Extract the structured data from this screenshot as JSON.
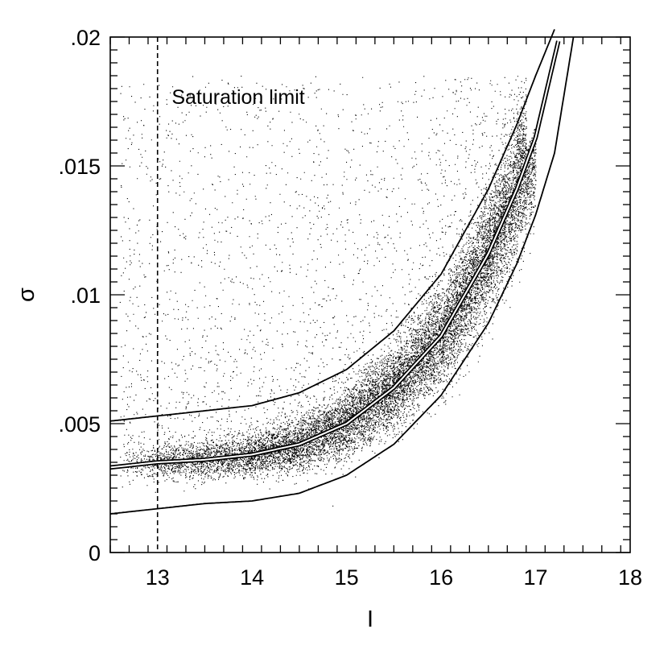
{
  "chart_data": {
    "type": "scatter",
    "title": "",
    "xlabel": "I",
    "ylabel": "σ",
    "xlim": [
      12.5,
      18
    ],
    "ylim": [
      0,
      0.02
    ],
    "x_ticks": [
      13,
      14,
      15,
      16,
      17,
      18
    ],
    "x_tick_labels": [
      "13",
      "14",
      "15",
      "16",
      "17",
      "18"
    ],
    "y_ticks": [
      0,
      0.005,
      0.01,
      0.015,
      0.02
    ],
    "y_tick_labels": [
      "0",
      ".005",
      ".01",
      ".015",
      ".02"
    ],
    "grid": false,
    "legend": "none",
    "annotations": [
      {
        "text": "Saturation limit",
        "x": 13.15,
        "y": 0.0174
      }
    ],
    "reference_lines": [
      {
        "orientation": "vertical",
        "x": 13,
        "style": "dashed"
      }
    ],
    "curves": [
      {
        "role": "upper",
        "x": [
          12.5,
          13,
          13.5,
          14,
          14.5,
          15,
          15.5,
          16,
          16.5,
          16.8,
          17,
          17.2
        ],
        "y": [
          0.0051,
          0.0053,
          0.0055,
          0.0057,
          0.0062,
          0.0071,
          0.0086,
          0.0108,
          0.0141,
          0.0166,
          0.0185,
          0.0203
        ]
      },
      {
        "role": "median",
        "x": [
          12.5,
          13,
          13.5,
          14,
          14.5,
          15,
          15.5,
          16,
          16.5,
          16.8,
          17,
          17.25
        ],
        "y": [
          0.0033,
          0.0035,
          0.0036,
          0.0038,
          0.0042,
          0.005,
          0.0064,
          0.0084,
          0.0116,
          0.0141,
          0.0161,
          0.02
        ]
      },
      {
        "role": "lower",
        "x": [
          12.5,
          13,
          13.5,
          14,
          14.5,
          15,
          15.5,
          16,
          16.5,
          16.8,
          17,
          17.2,
          17.4
        ],
        "y": [
          0.0015,
          0.0017,
          0.0019,
          0.002,
          0.0023,
          0.003,
          0.0042,
          0.0061,
          0.0089,
          0.0112,
          0.0131,
          0.0155,
          0.02
        ]
      }
    ],
    "point_cloud": {
      "x_range": [
        12.6,
        17.0
      ],
      "y_range": [
        0.0015,
        0.0185
      ],
      "dense_band_centerline": "median"
    }
  }
}
